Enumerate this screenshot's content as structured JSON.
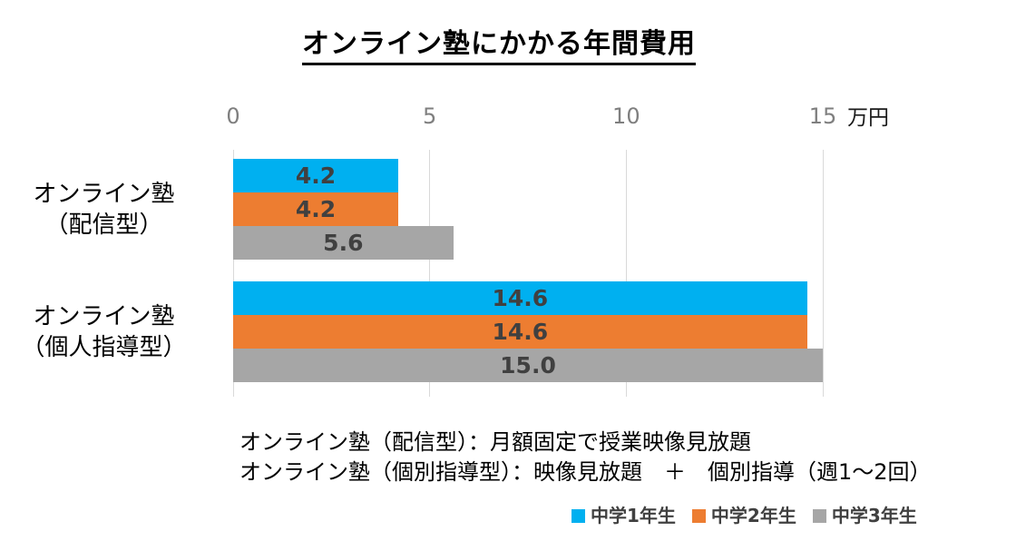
{
  "chart_data": {
    "type": "bar",
    "orientation": "horizontal",
    "title": "オンライン塾にかかる年間費用",
    "categories": [
      [
        "オンライン塾",
        "（配信型）"
      ],
      [
        "オンライン塾",
        "（個人指導型）"
      ]
    ],
    "series": [
      {
        "name": "中学1年生",
        "color": "#00B0F0",
        "values": [
          4.2,
          14.6
        ]
      },
      {
        "name": "中学2年生",
        "color": "#ED7D31",
        "values": [
          4.2,
          14.6
        ]
      },
      {
        "name": "中学3年生",
        "color": "#A6A6A6",
        "values": [
          5.6,
          15.0
        ]
      }
    ],
    "xlabel": "万円",
    "ylabel": "",
    "xlim": [
      0,
      15
    ],
    "xticks": [
      0,
      5,
      10,
      15
    ],
    "grid": true,
    "data_labels": true,
    "data_label_format": "one_decimal",
    "legend_position": "bottom-right"
  },
  "notes": [
    "オンライン塾（配信型）：月額固定で授業映像見放題",
    "オンライン塾（個別指導型）：映像見放題　＋　個別指導（週1～2回）"
  ],
  "colors": {
    "gridline": "#D9D9D9",
    "tick_label": "#7f7f7f",
    "data_label": "#404040",
    "legend_label": "#404040",
    "title": "#000000"
  }
}
